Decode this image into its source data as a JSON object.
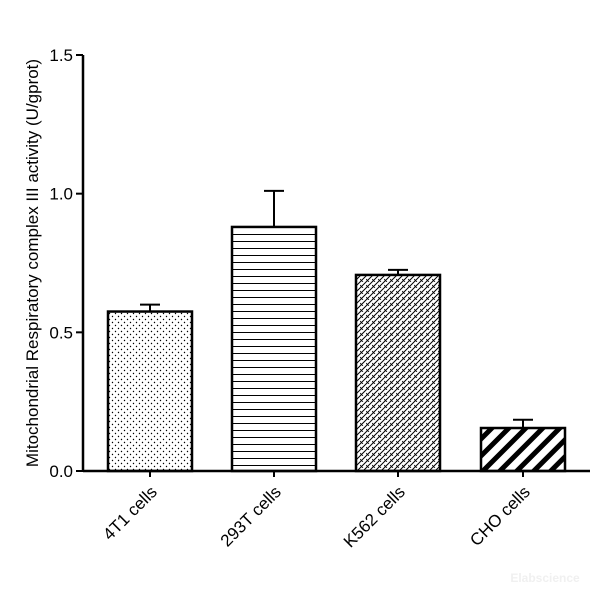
{
  "chart_data": {
    "type": "bar",
    "categories": [
      "4T1 cells",
      "293T cells",
      "K562 cells",
      "CHO cells"
    ],
    "values": [
      0.575,
      0.88,
      0.707,
      0.155
    ],
    "errors": [
      0.025,
      0.13,
      0.018,
      0.03
    ],
    "patterns": [
      "dots",
      "horizontal-lines",
      "crosshatch-diagonal",
      "wide-diagonal-stripes"
    ],
    "title": "",
    "xlabel": "",
    "ylabel": "Mitochondrial Respiratory complex III activity (U/gprot)",
    "ylim": [
      0,
      1.5
    ],
    "yticks": [
      "0.0",
      "0.5",
      "1.0",
      "1.5"
    ],
    "grid": false,
    "bar_color": "#ffffff",
    "edge_color": "#000000"
  },
  "watermark": "Elabscience"
}
